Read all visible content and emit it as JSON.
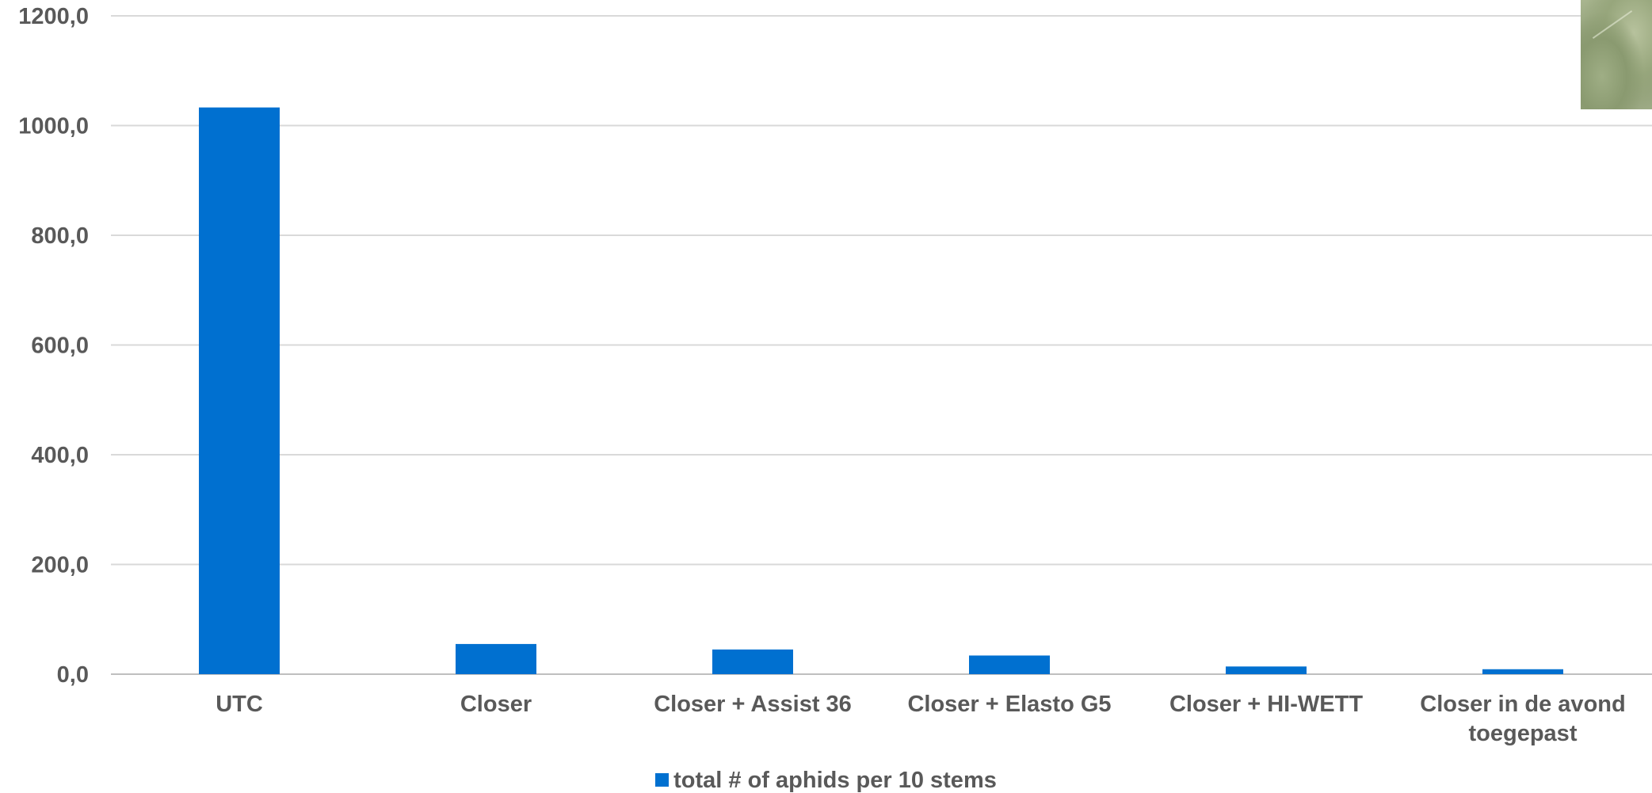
{
  "chart_data": {
    "type": "bar",
    "categories": [
      "UTC",
      "Closer",
      "Closer + Assist 36",
      "Closer + Elasto G5",
      "Closer + HI-WETT",
      "Closer in de avond toegepast"
    ],
    "category_lines": [
      [
        "UTC"
      ],
      [
        "Closer"
      ],
      [
        "Closer + Assist 36"
      ],
      [
        "Closer + Elasto G5"
      ],
      [
        "Closer + HI-WETT"
      ],
      [
        "Closer in de avond",
        "toegepast"
      ]
    ],
    "series": [
      {
        "name": "total # of aphids per 10 stems",
        "color": "#0070d0",
        "values": [
          1033,
          55,
          45,
          34,
          14,
          9
        ]
      }
    ],
    "yticks": [
      0,
      200,
      400,
      600,
      800,
      1000,
      1200
    ],
    "ytick_labels": [
      "0,0",
      "200,0",
      "400,0",
      "600,0",
      "800,0",
      "1000,0",
      "1200,0"
    ],
    "ylim": [
      0,
      1200
    ],
    "title": "",
    "xlabel": "",
    "ylabel": "",
    "grid": true,
    "legend_position": "bottom",
    "colors": {
      "bar": "#0070d0",
      "text": "#595959",
      "grid": "#d9d9d9"
    }
  }
}
